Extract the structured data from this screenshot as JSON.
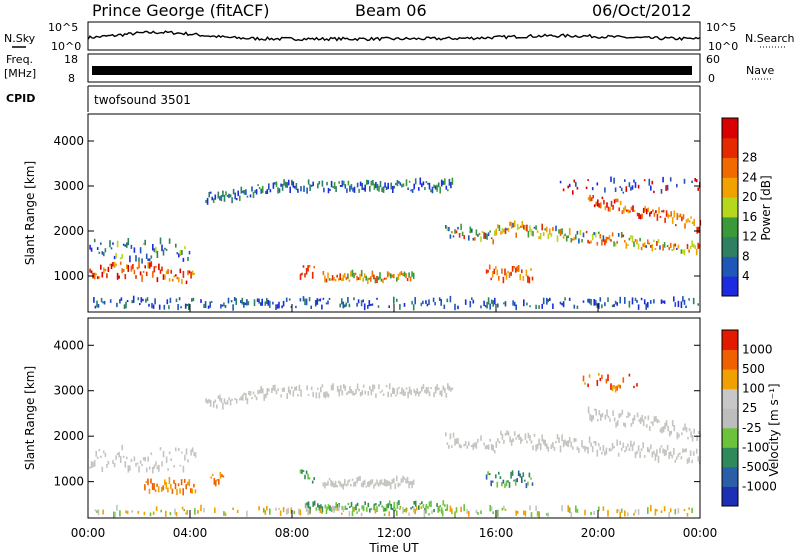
{
  "header": {
    "station": "Prince George (fitACF)",
    "beam": "Beam 06",
    "date": "06/Oct/2012"
  },
  "strips": {
    "noise": {
      "left_label": "N.Sky",
      "right_label": "N.Search",
      "left_ticks": [
        "10^5",
        "10^0"
      ],
      "right_ticks": [
        "10^5",
        "10^0"
      ]
    },
    "freq": {
      "left_label_line1": "Freq.",
      "left_label_line2": "[MHz]",
      "right_label": "Nave",
      "left_ticks": [
        "18",
        "8"
      ],
      "right_ticks": [
        "60",
        "0"
      ]
    },
    "cpid": {
      "left_label": "CPID",
      "program": "twofsound 3501"
    }
  },
  "chart_data": [
    {
      "type": "heatmap",
      "panel": "power",
      "xlabel": "",
      "ylabel": "Slant Range [km]",
      "ylim": [
        200,
        4600
      ],
      "y_ticks": [
        "1000",
        "2000",
        "3000",
        "4000"
      ],
      "y_tick_values": [
        1000,
        2000,
        3000,
        4000
      ],
      "colorbar": {
        "label": "Power [dB]",
        "ticks": [
          "4",
          "8",
          "12",
          "16",
          "20",
          "24",
          "28"
        ],
        "colors": [
          "#1d2be0",
          "#1f57b8",
          "#2f7f63",
          "#3a9a3a",
          "#b5d81f",
          "#f2a200",
          "#f06a00",
          "#e52a00",
          "#d80000"
        ]
      }
    },
    {
      "type": "heatmap",
      "panel": "velocity",
      "xlabel": "Time UT",
      "ylabel": "Slant Range [km]",
      "ylim": [
        200,
        4600
      ],
      "x_ticks": [
        "00:00",
        "04:00",
        "08:00",
        "12:00",
        "16:00",
        "20:00",
        "00:00"
      ],
      "x_tick_hours": [
        0,
        4,
        8,
        12,
        16,
        20,
        24
      ],
      "y_ticks": [
        "1000",
        "2000",
        "3000",
        "4000"
      ],
      "y_tick_values": [
        1000,
        2000,
        3000,
        4000
      ],
      "colorbar": {
        "label": "Velocity [m s⁻¹]",
        "ticks": [
          "1000",
          "500",
          "100",
          "25",
          "-25",
          "-100",
          "-500",
          "-1000"
        ],
        "colors": [
          "#1c2fb5",
          "#2b5ea8",
          "#2f8a5b",
          "#6cc23a",
          "#bdbdbd",
          "#c7c7c7",
          "#f0a000",
          "#f06000",
          "#e21a00"
        ]
      }
    }
  ]
}
